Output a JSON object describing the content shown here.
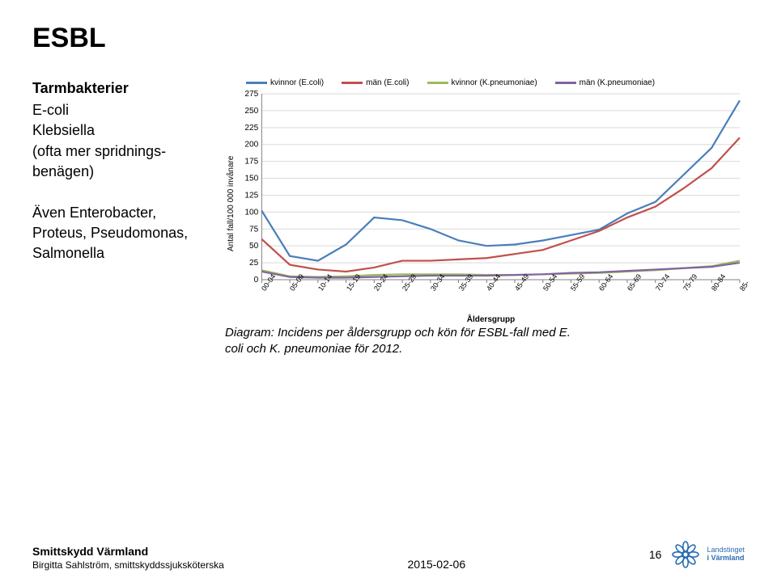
{
  "title": "ESBL",
  "left": {
    "subhead": "Tarmbakterier",
    "lines1": [
      "E-coli",
      "Klebsiella",
      "(ofta mer spridnings-",
      "benägen)"
    ],
    "lines2": [
      "Även Enterobacter,",
      "Proteus, Pseudomonas,",
      "Salmonella"
    ]
  },
  "chart": {
    "type": "line",
    "ylabel": "Antal fall/100 000 invånare",
    "xlabel_title": "Åldersgrupp",
    "categories": [
      "00-04",
      "05-09",
      "10-14",
      "15-19",
      "20-24",
      "25-29",
      "30-34",
      "35-39",
      "40-44",
      "45-49",
      "50-54",
      "55-59",
      "60-64",
      "65-69",
      "70-74",
      "75-79",
      "80-84",
      "85-"
    ],
    "ylim": [
      0,
      275
    ],
    "ytick_step": 25,
    "grid_color": "#d9d9d9",
    "axis_color": "#808080",
    "background_color": "#ffffff",
    "series": [
      {
        "name": "kvinnor (E.coli)",
        "color": "#4a7ebb",
        "width": 2.2,
        "values": [
          102,
          35,
          28,
          52,
          92,
          88,
          75,
          58,
          50,
          52,
          58,
          66,
          74,
          98,
          115,
          155,
          195,
          265
        ]
      },
      {
        "name": "män (E.coli)",
        "color": "#c0504d",
        "width": 2.2,
        "values": [
          60,
          22,
          15,
          12,
          18,
          28,
          28,
          30,
          32,
          38,
          44,
          58,
          72,
          92,
          108,
          135,
          165,
          210
        ]
      },
      {
        "name": "kvinnor (K.pneumoniae)",
        "color": "#9bbb59",
        "width": 2.2,
        "values": [
          14,
          5,
          4,
          5,
          7,
          8,
          8,
          8,
          7,
          7,
          8,
          9,
          10,
          12,
          14,
          17,
          20,
          28
        ]
      },
      {
        "name": "män (K.pneumoniae)",
        "color": "#8064a2",
        "width": 2.2,
        "values": [
          12,
          4,
          3,
          3,
          4,
          5,
          6,
          6,
          6,
          7,
          8,
          10,
          11,
          13,
          15,
          17,
          19,
          25
        ]
      }
    ],
    "label_fontsize": 10
  },
  "caption_lines": [
    "Diagram: Incidens per åldersgrupp och kön för ESBL-fall med E.",
    "coli och K. pneumoniae för 2012."
  ],
  "footer": {
    "org": "Smittskydd Värmland",
    "author": "Birgitta Sahlström, smittskyddssjuksköterska",
    "date": "2015-02-06",
    "page": "16",
    "logo_text1": "Landstinget",
    "logo_text2": "i Värmland",
    "logo_color": "#2a6db3"
  }
}
